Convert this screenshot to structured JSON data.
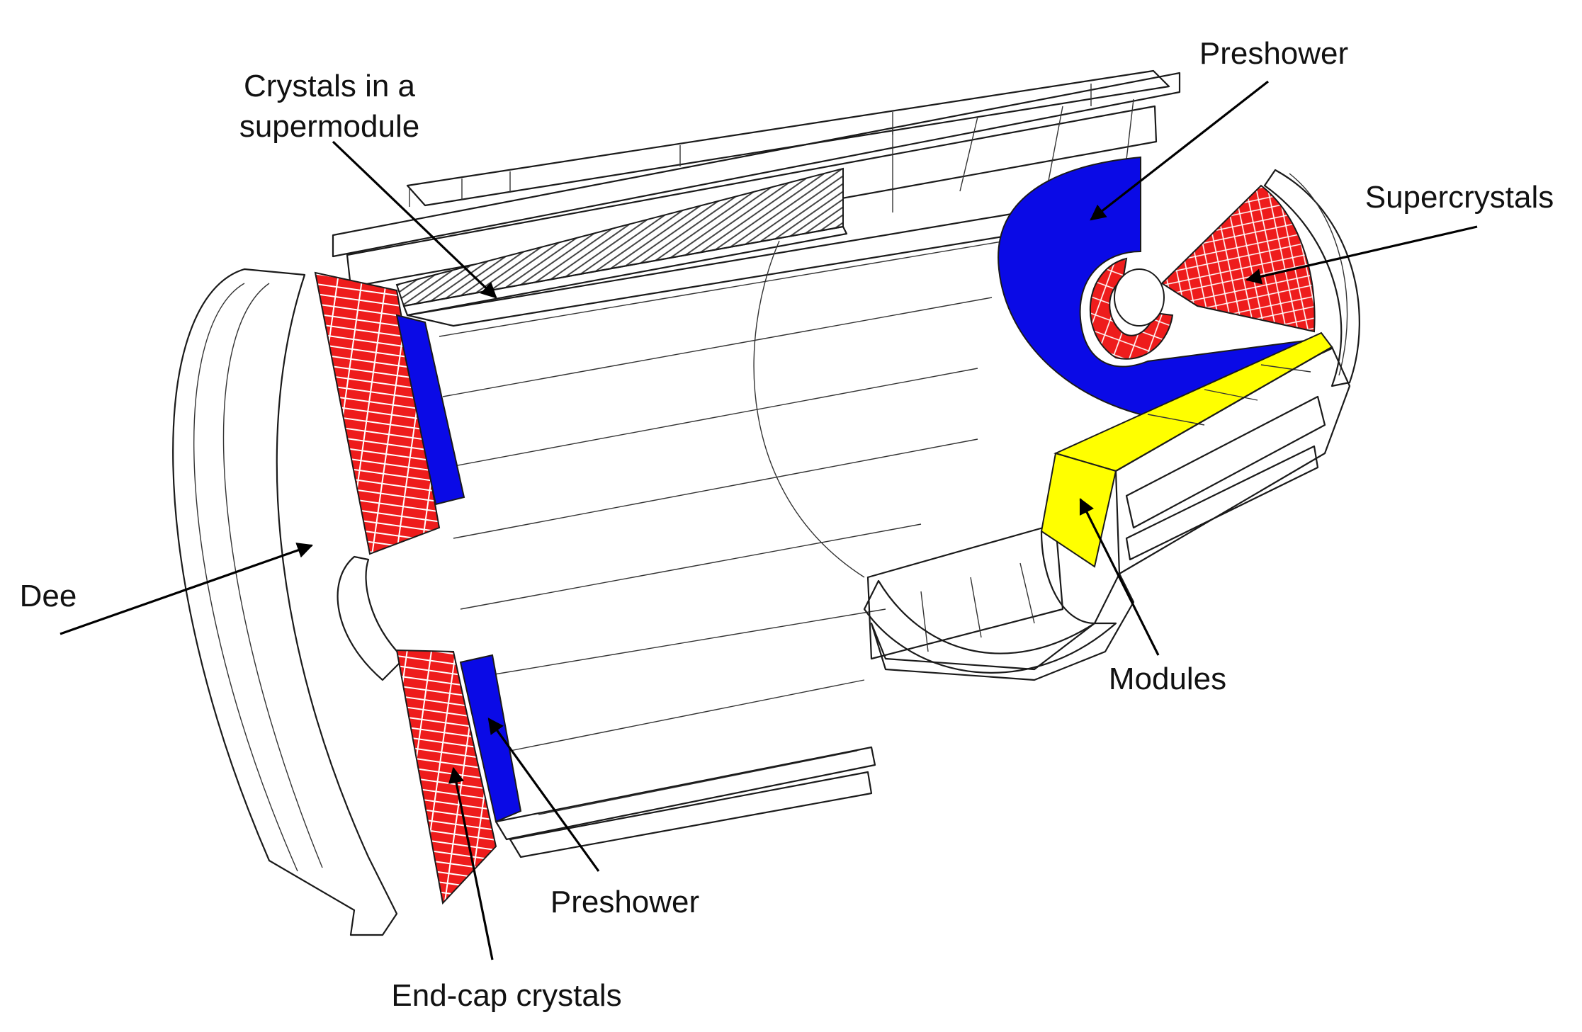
{
  "labels": {
    "crystals_supermodule_line1": "Crystals in a",
    "crystals_supermodule_line2": "supermodule",
    "preshower_top": "Preshower",
    "supercrystals": "Supercrystals",
    "dee": "Dee",
    "modules": "Modules",
    "preshower_bottom": "Preshower",
    "endcap_crystals": "End-cap crystals"
  },
  "colors": {
    "crystal": "#ee1c1c",
    "preshower": "#0a0ae6",
    "module": "#ffff00",
    "outline": "#1a1a1a",
    "background": "#ffffff"
  }
}
